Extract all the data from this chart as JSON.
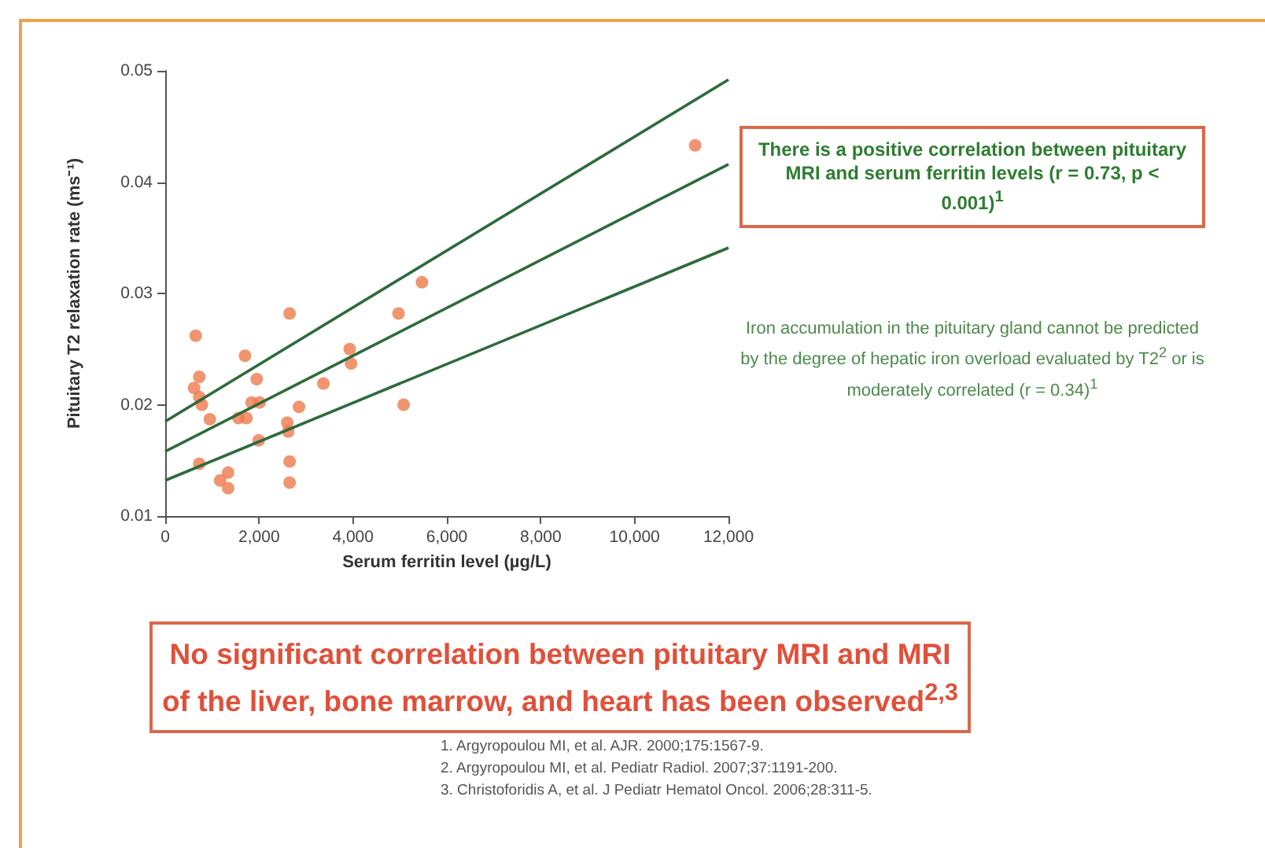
{
  "chart_data": {
    "type": "scatter",
    "xlabel": "Serum ferritin level (µg/L)",
    "ylabel": "Pituitary T2 relaxation rate (ms⁻¹)",
    "xlim": [
      0,
      12000
    ],
    "xticks": [
      {
        "value": 0,
        "label": "0"
      },
      {
        "value": 2000,
        "label": "2,000"
      },
      {
        "value": 4000,
        "label": "4,000"
      },
      {
        "value": 6000,
        "label": "6,000"
      },
      {
        "value": 8000,
        "label": "8,000"
      },
      {
        "value": 10000,
        "label": "10,000"
      },
      {
        "value": 12000,
        "label": "12,000"
      }
    ],
    "ylim": [
      0.01,
      0.05
    ],
    "yticks": [
      0.01,
      0.02,
      0.03,
      0.04,
      0.05
    ],
    "grid": false,
    "marker": "circle",
    "series": [
      {
        "color": "#ee7a4e",
        "x": [
          650,
          725,
          615,
          725,
          780,
          725,
          950,
          1170,
          1340,
          1340,
          1700,
          1560,
          1730,
          1840,
          2010,
          1950,
          1990,
          2650,
          2600,
          2620,
          2650,
          2650,
          2850,
          3370,
          3930,
          3960,
          4970,
          5080,
          5470,
          11290
        ],
        "values": [
          0.0262,
          0.0225,
          0.0215,
          0.0207,
          0.02,
          0.0147,
          0.0187,
          0.0132,
          0.0125,
          0.0139,
          0.0244,
          0.0188,
          0.0188,
          0.0202,
          0.0202,
          0.0223,
          0.0168,
          0.0282,
          0.0184,
          0.0176,
          0.0149,
          0.013,
          0.0198,
          0.0219,
          0.025,
          0.0237,
          0.0282,
          0.02,
          0.031,
          0.0433
        ]
      },
      {
        "type": "line",
        "color": "#2f6a3e",
        "marker": "none",
        "x": [
          0,
          12000
        ],
        "values": [
          0.0185,
          0.0492
        ]
      },
      {
        "type": "line",
        "color": "#2f6a3e",
        "marker": "none",
        "x": [
          0,
          12000
        ],
        "values": [
          0.0158,
          0.0416
        ]
      },
      {
        "type": "line",
        "color": "#2f6a3e",
        "marker": "none",
        "x": [
          0,
          12000
        ],
        "values": [
          0.0132,
          0.0341
        ]
      }
    ],
    "annotations": [
      "There is a positive correlation between pituitary MRI and serum ferritin levels (r = 0.73, p < 0.001)$^{1}$",
      "Iron accumulation in the pituitary gland cannot be predicted by the degree of hepatic iron overload evaluated by T2$^{2}$ or is moderately correlated (r = 0.34)$^{1}$",
      "No significant correlation between pituitary MRI and MRI of the liver, bone marrow, and heart has been observed$^{2,3}$",
      "1. Argyropoulou MI, et al. AJR. 2000;175:1567-9.\n2. Argyropoulou MI, et al. Pediatr Radiol. 2007;37:1191-200.\n3. Christoforidis A, et al. J Pediatr Hematol Oncol. 2006;28:311-5."
    ]
  }
}
